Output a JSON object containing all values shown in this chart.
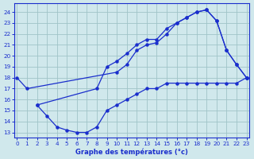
{
  "title": "Graphe des températures (°c)",
  "bg_color": "#d0e8ec",
  "grid_color": "#a0c4c8",
  "line_color": "#1a2ecc",
  "xlim": [
    -0.3,
    23.3
  ],
  "ylim": [
    12.5,
    24.8
  ],
  "xticks": [
    0,
    1,
    2,
    3,
    4,
    5,
    6,
    7,
    8,
    9,
    10,
    11,
    12,
    13,
    14,
    15,
    16,
    17,
    18,
    19,
    20,
    21,
    22,
    23
  ],
  "yticks": [
    13,
    14,
    15,
    16,
    17,
    18,
    19,
    20,
    21,
    22,
    23,
    24
  ],
  "series": [
    {
      "x": [
        0,
        1,
        10,
        11,
        12,
        13,
        14,
        15,
        16,
        17,
        18,
        19,
        20,
        21,
        22,
        23
      ],
      "y": [
        18.0,
        17.0,
        18.5,
        19.2,
        20.5,
        21.0,
        21.2,
        22.0,
        23.0,
        23.5,
        24.0,
        24.2,
        23.2,
        20.5,
        19.2,
        18.0
      ]
    },
    {
      "x": [
        2,
        3,
        4,
        5,
        6,
        7,
        8,
        9,
        10,
        11,
        12,
        13,
        14,
        15,
        16,
        17,
        18,
        19,
        20,
        21,
        22,
        23
      ],
      "y": [
        15.5,
        14.5,
        13.5,
        13.2,
        13.0,
        13.0,
        13.5,
        15.0,
        15.5,
        16.0,
        16.5,
        17.0,
        17.0,
        17.5,
        17.5,
        17.5,
        17.5,
        17.5,
        17.5,
        17.5,
        17.5,
        18.0
      ]
    },
    {
      "x": [
        2,
        8,
        9,
        10,
        11,
        12,
        13,
        14,
        15,
        16,
        17,
        18,
        19,
        20,
        21,
        22,
        23
      ],
      "y": [
        15.5,
        17.0,
        19.0,
        19.5,
        20.2,
        21.0,
        21.5,
        21.5,
        22.5,
        23.0,
        23.5,
        24.0,
        24.2,
        23.2,
        20.5,
        19.2,
        18.0
      ]
    }
  ]
}
